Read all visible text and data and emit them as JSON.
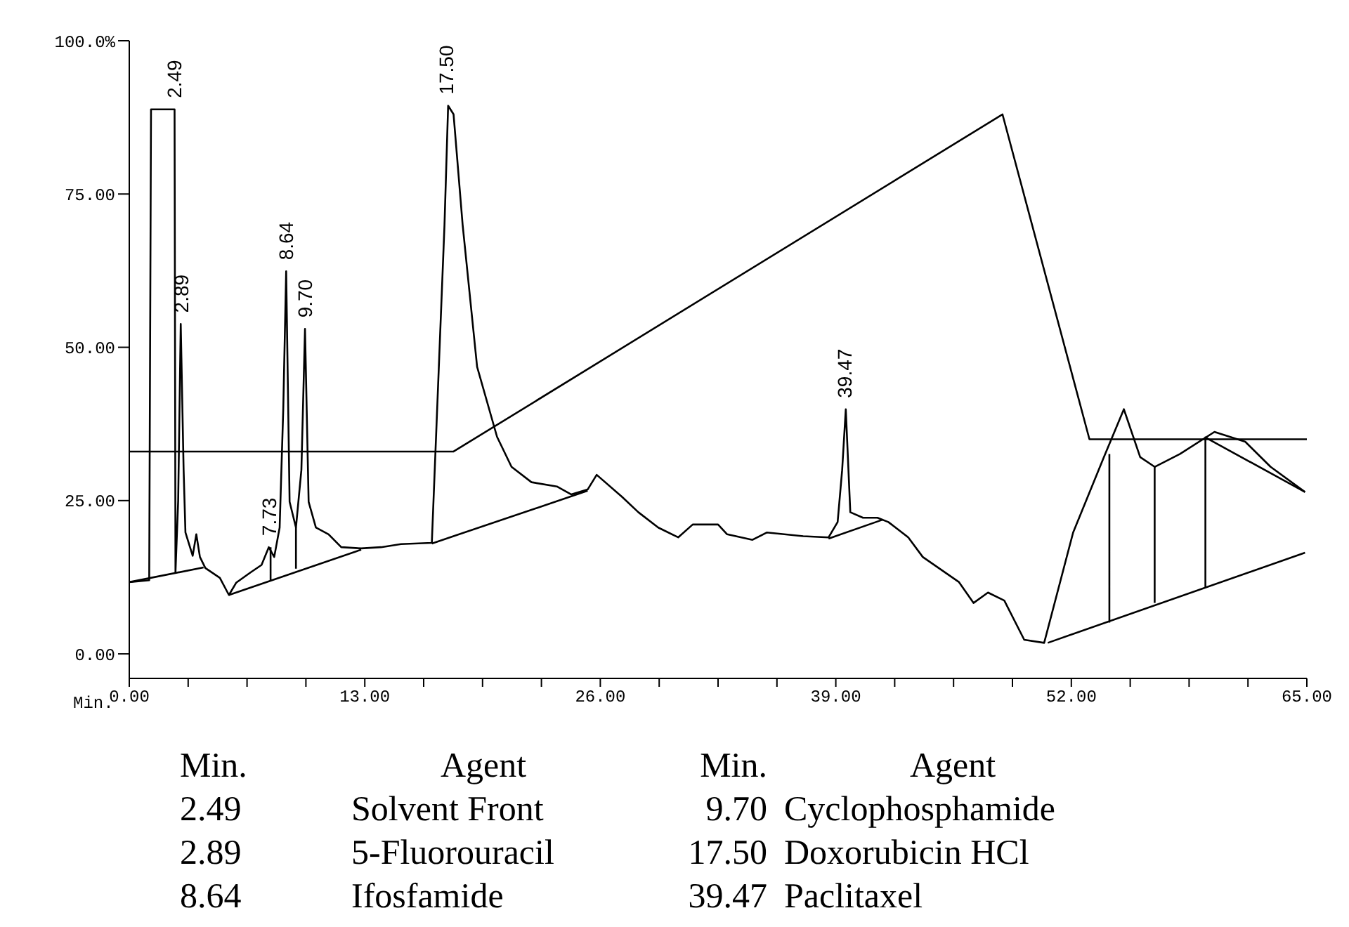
{
  "chart_data": {
    "type": "line",
    "xlabel": "Min.",
    "xlim": [
      0,
      65
    ],
    "ylim": [
      -4,
      100
    ],
    "xticks": [
      {
        "value": 0,
        "label": "0.00"
      },
      {
        "value": 3.25,
        "label": null
      },
      {
        "value": 6.5,
        "label": null
      },
      {
        "value": 9.75,
        "label": null
      },
      {
        "value": 13,
        "label": "13.00"
      },
      {
        "value": 16.25,
        "label": null
      },
      {
        "value": 19.5,
        "label": null
      },
      {
        "value": 22.75,
        "label": null
      },
      {
        "value": 26,
        "label": "26.00"
      },
      {
        "value": 29.25,
        "label": null
      },
      {
        "value": 32.5,
        "label": null
      },
      {
        "value": 35.75,
        "label": null
      },
      {
        "value": 39,
        "label": "39.00"
      },
      {
        "value": 42.25,
        "label": null
      },
      {
        "value": 45.5,
        "label": null
      },
      {
        "value": 48.75,
        "label": null
      },
      {
        "value": 52,
        "label": "52.00"
      },
      {
        "value": 55.25,
        "label": null
      },
      {
        "value": 58.5,
        "label": null
      },
      {
        "value": 61.75,
        "label": null
      },
      {
        "value": 65,
        "label": "65.00"
      }
    ],
    "yticks": [
      {
        "value": 0,
        "label": "0.00"
      },
      {
        "value": 25,
        "label": "25.00"
      },
      {
        "value": 50,
        "label": "50.00"
      },
      {
        "value": 75,
        "label": "75.00"
      },
      {
        "value": 100,
        "label": "100.0%"
      }
    ],
    "grid": false,
    "series": [
      {
        "color": "#000000",
        "x": [
          0,
          1.1,
          1.2,
          1.3,
          2.5,
          2.55,
          2.7,
          2.84,
          3.0,
          3.1,
          3.5,
          3.7,
          3.9,
          4.2,
          5.0,
          5.5,
          5.9,
          6.7,
          7.3,
          7.7,
          8.0,
          8.3,
          8.5,
          8.66,
          8.85,
          9.2,
          9.5,
          9.7,
          9.9,
          10.3,
          11.0,
          11.7,
          12.8,
          13.9,
          15.0,
          16.7,
          17.4,
          17.6,
          17.9,
          18.4,
          19.2,
          20.3,
          21.1,
          22.2,
          23.6,
          24.4,
          25.3,
          25.8,
          27.2,
          28.1,
          29.2,
          30.3,
          31.1,
          32.5,
          33.0,
          34.4,
          35.2,
          37.2,
          38.6,
          39.1,
          39.35,
          39.55,
          39.8,
          40.5,
          41.3,
          41.9,
          43.0,
          43.8,
          45.8,
          46.6,
          47.4,
          48.3,
          49.4,
          50.5,
          52.1,
          53.8,
          54.9,
          55.8,
          56.6,
          58.0,
          59.9,
          61.6,
          63.0,
          64.9
        ],
        "values": [
          11.7,
          12,
          88.8,
          88.8,
          88.8,
          13.3,
          25,
          53.8,
          30,
          19.8,
          16,
          19.5,
          15.8,
          14,
          12.4,
          9.6,
          11.6,
          13.3,
          14.5,
          17.4,
          15.8,
          20.6,
          40,
          62.4,
          24.8,
          20.6,
          30,
          53,
          24.8,
          20.6,
          19.5,
          17.4,
          17.2,
          17.4,
          17.9,
          18.1,
          70,
          89.4,
          88,
          70,
          46.8,
          35.4,
          30.5,
          28,
          27.3,
          26,
          26.8,
          29.2,
          25.6,
          23.1,
          20.6,
          19,
          21.1,
          21.1,
          19.5,
          18.6,
          19.8,
          19.2,
          19,
          21.5,
          30,
          39.9,
          23.1,
          22.2,
          22.2,
          21.5,
          19,
          15.8,
          11.7,
          8.3,
          10,
          8.7,
          2.3,
          1.8,
          19.8,
          32.1,
          39.9,
          32.1,
          30.5,
          32.6,
          36.2,
          34.6,
          30.5,
          26.4
        ]
      },
      {
        "color": "#000000",
        "x": [
          0,
          17.9,
          48.2,
          53.0,
          65
        ],
        "values": [
          33,
          33,
          88,
          35,
          35
        ]
      },
      {
        "color": "#000000",
        "x": [
          0,
          4.1,
          null,
          5.5,
          12.8,
          null,
          7.8,
          7.8,
          null,
          9.2,
          9.2,
          null,
          16.7,
          25.3,
          null,
          38.6,
          41.6,
          null,
          50.7,
          64.9,
          null,
          54.1,
          54.1,
          null,
          56.6,
          56.6,
          null,
          59.4,
          59.4,
          64.9
        ],
        "values": [
          11.7,
          14.1,
          null,
          9.6,
          17.0,
          null,
          12,
          17.4,
          null,
          13.9,
          20.6,
          null,
          18,
          26.6,
          null,
          18.8,
          21.9,
          null,
          1.8,
          16.5,
          null,
          5.1,
          32.6,
          null,
          8.3,
          30.5,
          null,
          10.8,
          35.3,
          26.4
        ]
      }
    ],
    "annotations": [
      {
        "text": "2.49",
        "x": 2.49,
        "y": 88.8
      },
      {
        "text": "2.89",
        "x": 2.89,
        "y": 53.8
      },
      {
        "text": "7.73",
        "x": 7.73,
        "y": 17.4
      },
      {
        "text": "8.64",
        "x": 8.64,
        "y": 62.4
      },
      {
        "text": "9.70",
        "x": 9.7,
        "y": 53
      },
      {
        "text": "17.50",
        "x": 17.5,
        "y": 89.4
      },
      {
        "text": "39.47",
        "x": 39.47,
        "y": 39.9
      },
      "Min.",
      "Agent",
      "Min.",
      "Agent",
      "2.49",
      "Solvent Front",
      "9.70",
      "Cyclophosphamide",
      "2.89",
      "5-Fluorouracil",
      "17.50",
      "Doxorubicin HCl",
      "8.64",
      "Ifosfamide",
      "39.47",
      "Paclitaxel"
    ]
  }
}
